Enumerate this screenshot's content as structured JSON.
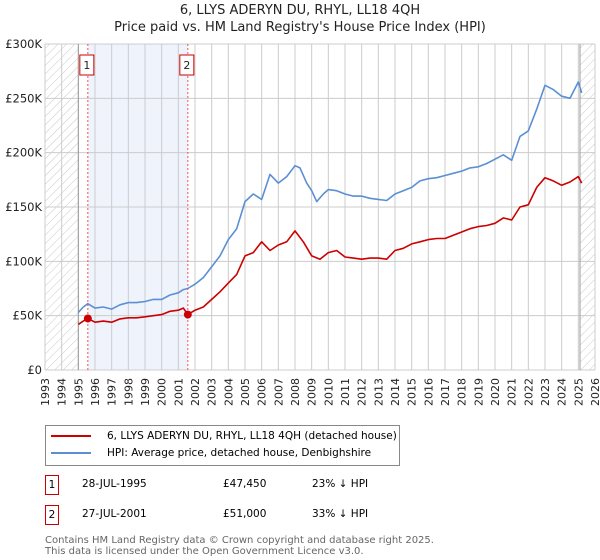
{
  "title": "6, LLYS ADERYN DU, RHYL, LL18 4QH",
  "subtitle": "Price paid vs. HM Land Registry's House Price Index (HPI)",
  "colors": {
    "property": "#cc0000",
    "hpi": "#5b8fd4",
    "shade": "#eef3fc",
    "grid": "#cccccc"
  },
  "chart_data": {
    "type": "line",
    "title": "6, LLYS ADERYN DU, RHYL, LL18 4QH",
    "subtitle": "Price paid vs. HM Land Registry's House Price Index (HPI)",
    "xlim": [
      1993,
      2026
    ],
    "ylim": [
      0,
      300000
    ],
    "x_ticks": [
      "1993",
      "1994",
      "1995",
      "1996",
      "1997",
      "1998",
      "1999",
      "2000",
      "2001",
      "2002",
      "2003",
      "2004",
      "2005",
      "2006",
      "2007",
      "2008",
      "2009",
      "2010",
      "2011",
      "2012",
      "2013",
      "2014",
      "2015",
      "2016",
      "2017",
      "2018",
      "2019",
      "2020",
      "2021",
      "2022",
      "2023",
      "2024",
      "2025",
      "2026"
    ],
    "y_ticks": [
      {
        "v": 0,
        "label": "£0"
      },
      {
        "v": 50000,
        "label": "£50K"
      },
      {
        "v": 100000,
        "label": "£100K"
      },
      {
        "v": 150000,
        "label": "£150K"
      },
      {
        "v": 200000,
        "label": "£200K"
      },
      {
        "v": 250000,
        "label": "£250K"
      },
      {
        "v": 300000,
        "label": "£300K"
      }
    ],
    "grid": true,
    "hatched_ranges": [
      [
        1993,
        1995.0
      ],
      [
        2025.1,
        2026
      ]
    ],
    "shaded_range": [
      1995.57,
      2001.57
    ],
    "series": [
      {
        "name": "6, LLYS ADERYN DU, RHYL, LL18 4QH (detached house)",
        "color": "#cc0000",
        "x": [
          1995.0,
          1995.3,
          1995.57,
          1996,
          1996.5,
          1997,
          1997.5,
          1998,
          1998.5,
          1999,
          1999.5,
          2000,
          2000.5,
          2001,
          2001.3,
          2001.57,
          2002,
          2002.5,
          2003,
          2003.5,
          2004,
          2004.5,
          2005,
          2005.5,
          2006,
          2006.5,
          2007,
          2007.5,
          2008,
          2008.5,
          2009,
          2009.5,
          2010,
          2010.5,
          2011,
          2011.5,
          2012,
          2012.5,
          2013,
          2013.5,
          2014,
          2014.5,
          2015,
          2015.5,
          2016,
          2016.5,
          2017,
          2017.5,
          2018,
          2018.5,
          2019,
          2019.5,
          2020,
          2020.5,
          2021,
          2021.5,
          2022,
          2022.5,
          2023,
          2023.5,
          2024,
          2024.5,
          2025,
          2025.2
        ],
        "y": [
          42000,
          45000,
          47450,
          44000,
          45000,
          44000,
          47000,
          48000,
          48000,
          49000,
          50000,
          51000,
          54000,
          55000,
          57000,
          51000,
          55000,
          58000,
          65000,
          72000,
          80000,
          88000,
          105000,
          108000,
          118000,
          110000,
          115000,
          118000,
          128000,
          118000,
          105000,
          102000,
          108000,
          110000,
          104000,
          103000,
          102000,
          103000,
          103000,
          102000,
          110000,
          112000,
          116000,
          118000,
          120000,
          121000,
          121000,
          124000,
          127000,
          130000,
          132000,
          133000,
          135000,
          140000,
          138000,
          150000,
          152000,
          168000,
          177000,
          174000,
          170000,
          173000,
          178000,
          172000
        ]
      },
      {
        "name": "HPI: Average price, detached house, Denbighshire",
        "color": "#5b8fd4",
        "x": [
          1995.0,
          1995.3,
          1995.57,
          1996,
          1996.5,
          1997,
          1997.5,
          1998,
          1998.5,
          1999,
          1999.5,
          2000,
          2000.5,
          2001,
          2001.3,
          2001.57,
          2002,
          2002.5,
          2003,
          2003.5,
          2004,
          2004.5,
          2005,
          2005.5,
          2006,
          2006.5,
          2007,
          2007.5,
          2008,
          2008.3,
          2008.7,
          2009,
          2009.3,
          2009.7,
          2010,
          2010.5,
          2011,
          2011.5,
          2012,
          2012.5,
          2013,
          2013.5,
          2014,
          2014.5,
          2015,
          2015.5,
          2016,
          2016.5,
          2017,
          2017.5,
          2018,
          2018.5,
          2019,
          2019.5,
          2020,
          2020.5,
          2021,
          2021.5,
          2022,
          2022.5,
          2023,
          2023.5,
          2024,
          2024.5,
          2025,
          2025.2
        ],
        "y": [
          53000,
          58000,
          61000,
          57000,
          58000,
          56000,
          60000,
          62000,
          62000,
          63000,
          65000,
          65000,
          69000,
          71000,
          74000,
          75000,
          79000,
          85000,
          95000,
          105000,
          120000,
          130000,
          155000,
          162000,
          157000,
          180000,
          172000,
          178000,
          188000,
          186000,
          172000,
          165000,
          155000,
          162000,
          166000,
          165000,
          162000,
          160000,
          160000,
          158000,
          157000,
          156000,
          162000,
          165000,
          168000,
          174000,
          176000,
          177000,
          179000,
          181000,
          183000,
          186000,
          187000,
          190000,
          194000,
          198000,
          193000,
          215000,
          220000,
          240000,
          262000,
          258000,
          252000,
          250000,
          265000,
          255000
        ]
      }
    ],
    "annotations": [
      {
        "label": "1",
        "x": 1995.57,
        "y": 47450
      },
      {
        "label": "2",
        "x": 2001.57,
        "y": 51000
      }
    ]
  },
  "legend": [
    "6, LLYS ADERYN DU, RHYL, LL18 4QH (detached house)",
    "HPI: Average price, detached house, Denbighshire"
  ],
  "table": [
    {
      "num": "1",
      "date": "28-JUL-1995",
      "price": "£47,450",
      "hpi": "23% ↓ HPI"
    },
    {
      "num": "2",
      "date": "27-JUL-2001",
      "price": "£51,000",
      "hpi": "33% ↓ HPI"
    }
  ],
  "footer": [
    "Contains HM Land Registry data © Crown copyright and database right 2025.",
    "This data is licensed under the Open Government Licence v3.0."
  ]
}
